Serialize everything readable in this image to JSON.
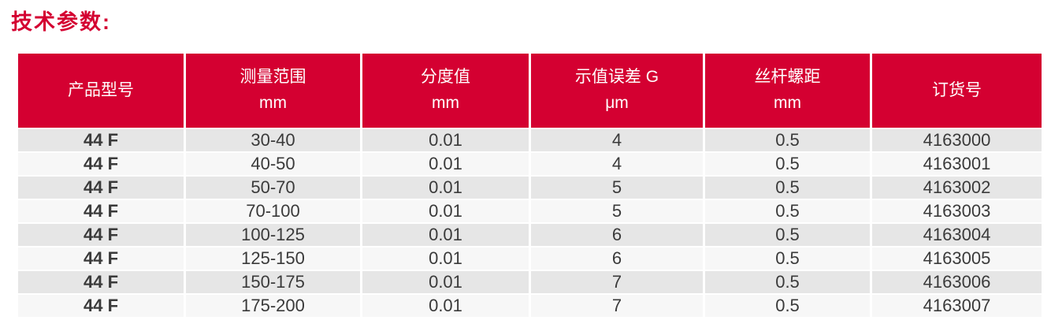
{
  "title": "技术参数:",
  "colors": {
    "accent_red": "#d40031",
    "row_odd": "#e6e6e6",
    "row_even": "#f7f7f7",
    "header_text": "#ffffff",
    "body_text": "#3a3a3a"
  },
  "table": {
    "headers": [
      {
        "label": "产品型号",
        "unit": ""
      },
      {
        "label": "测量范围",
        "unit": "mm"
      },
      {
        "label": "分度值",
        "unit": "mm"
      },
      {
        "label": "示值误差 G",
        "unit": "μm"
      },
      {
        "label": "丝杆螺距",
        "unit": "mm"
      },
      {
        "label": "订货号",
        "unit": ""
      }
    ],
    "rows": [
      [
        "44 F",
        "30-40",
        "0.01",
        "4",
        "0.5",
        "4163000"
      ],
      [
        "44 F",
        "40-50",
        "0.01",
        "4",
        "0.5",
        "4163001"
      ],
      [
        "44 F",
        "50-70",
        "0.01",
        "5",
        "0.5",
        "4163002"
      ],
      [
        "44 F",
        "70-100",
        "0.01",
        "5",
        "0.5",
        "4163003"
      ],
      [
        "44 F",
        "100-125",
        "0.01",
        "6",
        "0.5",
        "4163004"
      ],
      [
        "44 F",
        "125-150",
        "0.01",
        "6",
        "0.5",
        "4163005"
      ],
      [
        "44 F",
        "150-175",
        "0.01",
        "7",
        "0.5",
        "4163006"
      ],
      [
        "44 F",
        "175-200",
        "0.01",
        "7",
        "0.5",
        "4163007"
      ]
    ]
  }
}
